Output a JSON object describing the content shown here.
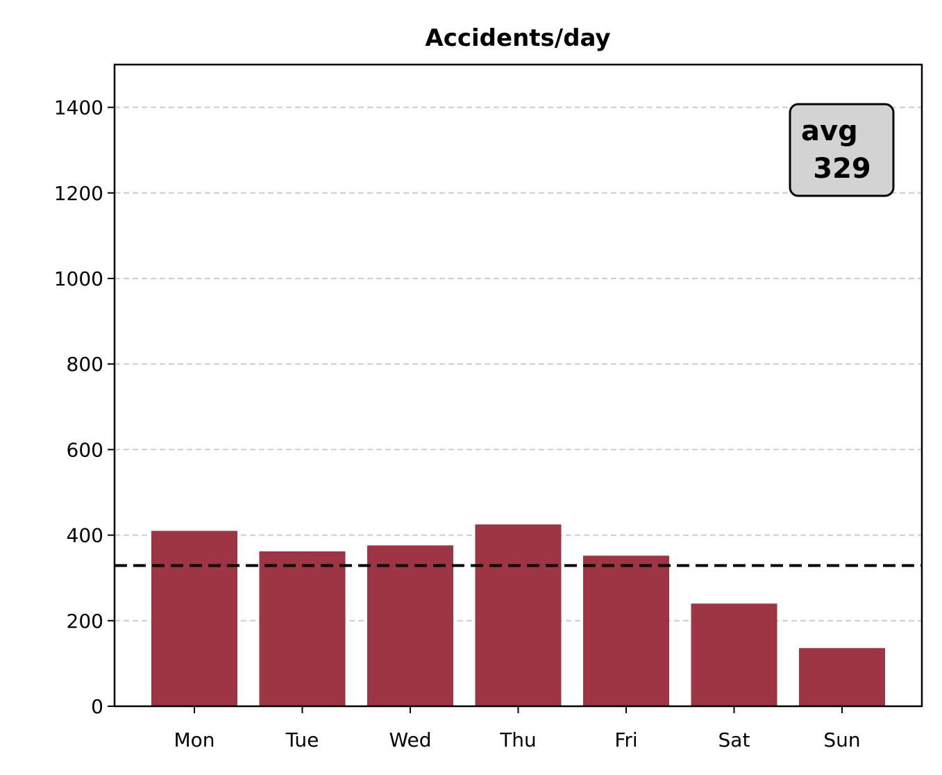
{
  "chart_data": {
    "type": "bar",
    "title": "Accidents/day",
    "xlabel": "",
    "ylabel": "",
    "categories": [
      "Mon",
      "Tue",
      "Wed",
      "Thu",
      "Fri",
      "Sat",
      "Sun"
    ],
    "values": [
      410,
      362,
      376,
      425,
      352,
      240,
      136
    ],
    "ylim": [
      0,
      1500
    ],
    "yticks": [
      0,
      200,
      400,
      600,
      800,
      1000,
      1200,
      1400
    ],
    "ytick_labels": [
      "0",
      "200",
      "400",
      "600",
      "800",
      "1000",
      "1200",
      "1400"
    ],
    "grid": "y-dashed",
    "bar_color": "#9e3544",
    "reference_line": {
      "value": 329,
      "style": "dashed",
      "color": "#000000"
    },
    "annotation": {
      "line1": "avg",
      "line2": "329",
      "placement": "top-right",
      "background": "#d3d3d3"
    }
  }
}
